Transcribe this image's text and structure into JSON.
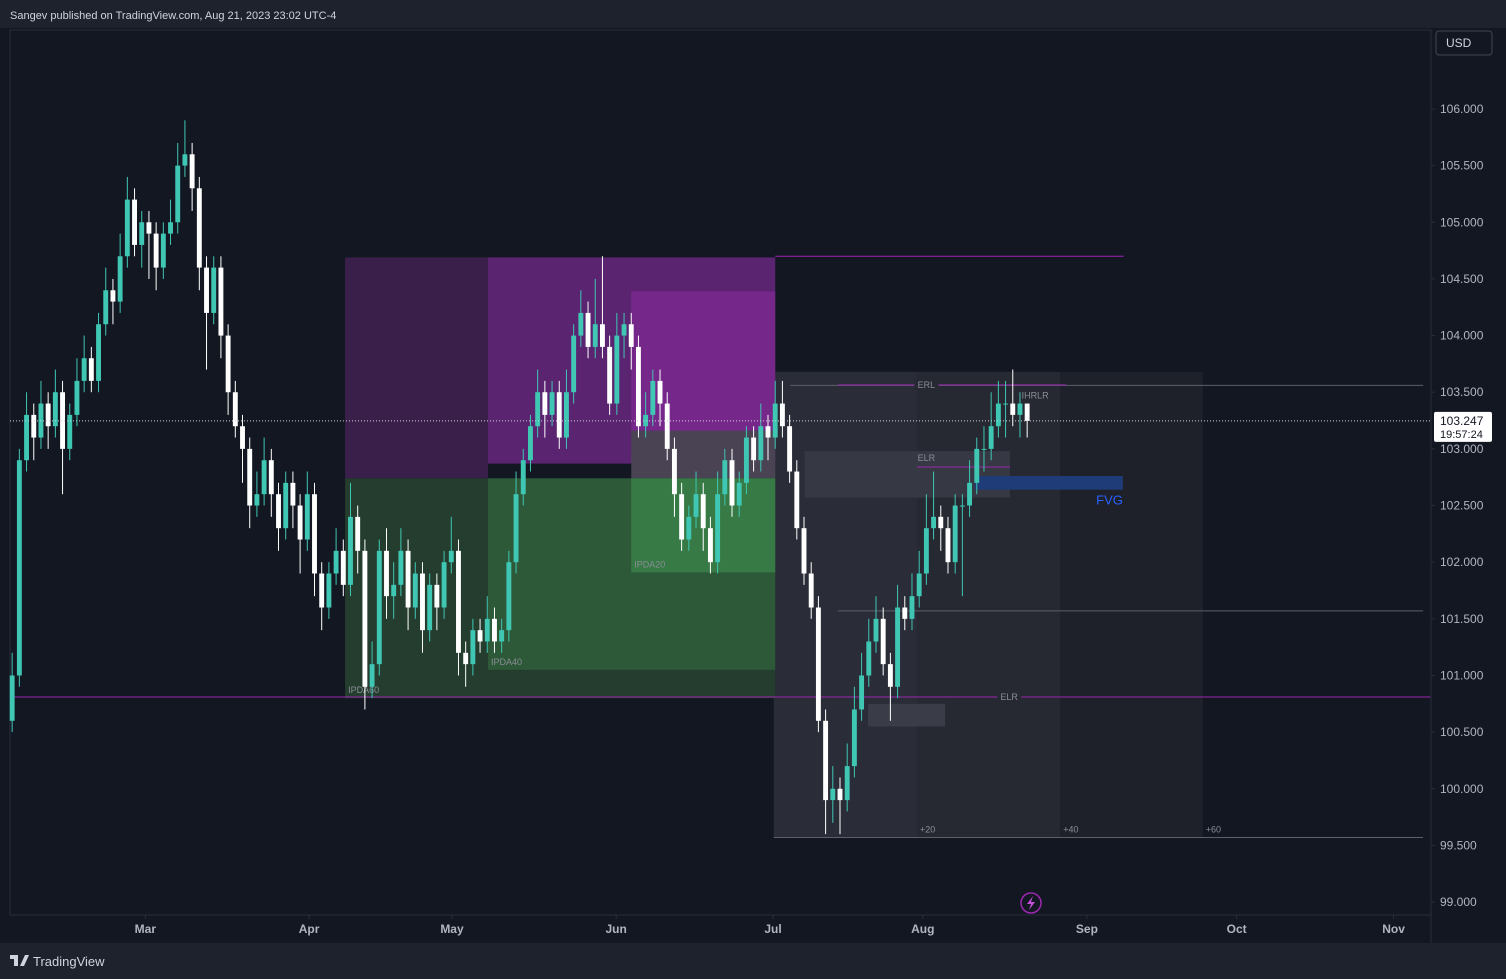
{
  "header": "Sangev published on TradingView.com, Aug 21, 2023 23:02 UTC-4",
  "footer": "TradingView",
  "chart_data": {
    "type": "candlestick",
    "currency": "USD",
    "up_color": "#3fc7b4",
    "down_color": "#ffffff",
    "xlim": [
      -0.3,
      197.1
    ],
    "ylim": [
      98.886,
      106.697
    ],
    "xticks": [
      {
        "value": 18.5,
        "label": "Mar"
      },
      {
        "value": 41.25,
        "label": "Apr"
      },
      {
        "value": 61.1,
        "label": "May"
      },
      {
        "value": 83.9,
        "label": "Jun"
      },
      {
        "value": 105.7,
        "label": "Jul"
      },
      {
        "value": 126.5,
        "label": "Aug"
      },
      {
        "value": 149.3,
        "label": "Sep"
      },
      {
        "value": 170.1,
        "label": "Oct"
      },
      {
        "value": 191.9,
        "label": "Nov"
      }
    ],
    "yticks": [
      {
        "value": 99,
        "label": "99.000"
      },
      {
        "value": 99.5,
        "label": "99.500"
      },
      {
        "value": 100,
        "label": "100.000"
      },
      {
        "value": 100.5,
        "label": "100.500"
      },
      {
        "value": 101,
        "label": "101.000"
      },
      {
        "value": 101.5,
        "label": "101.500"
      },
      {
        "value": 102,
        "label": "102.000"
      },
      {
        "value": 102.5,
        "label": "102.500"
      },
      {
        "value": 103,
        "label": "103.000"
      },
      {
        "value": 103.5,
        "label": "103.500"
      },
      {
        "value": 104,
        "label": "104.000"
      },
      {
        "value": 104.5,
        "label": "104.500"
      },
      {
        "value": 105,
        "label": "105.000"
      },
      {
        "value": 105.5,
        "label": "105.500"
      },
      {
        "value": 106,
        "label": "106.000"
      }
    ],
    "last_price": 103.247,
    "countdown": "19:57:24",
    "candles": [
      [
        100.6,
        101.2,
        100.5,
        101.0
      ],
      [
        101.0,
        103.0,
        100.9,
        102.9
      ],
      [
        102.9,
        103.5,
        102.8,
        103.3
      ],
      [
        103.3,
        103.4,
        102.9,
        103.1
      ],
      [
        103.1,
        103.6,
        103.0,
        103.4
      ],
      [
        103.4,
        103.5,
        103.0,
        103.2
      ],
      [
        103.2,
        103.7,
        103.1,
        103.5
      ],
      [
        103.5,
        103.6,
        102.6,
        103.0
      ],
      [
        103.0,
        103.4,
        102.9,
        103.3
      ],
      [
        103.3,
        103.8,
        103.2,
        103.6
      ],
      [
        103.6,
        104.0,
        103.5,
        103.8
      ],
      [
        103.8,
        103.9,
        103.5,
        103.6
      ],
      [
        103.6,
        104.2,
        103.5,
        104.1
      ],
      [
        104.1,
        104.6,
        104.0,
        104.4
      ],
      [
        104.4,
        104.5,
        104.1,
        104.3
      ],
      [
        104.3,
        104.9,
        104.2,
        104.7
      ],
      [
        104.7,
        105.4,
        104.6,
        105.2
      ],
      [
        105.2,
        105.3,
        104.7,
        104.8
      ],
      [
        104.8,
        105.1,
        104.6,
        105.0
      ],
      [
        105.0,
        105.1,
        104.5,
        104.9
      ],
      [
        104.9,
        105.0,
        104.4,
        104.6
      ],
      [
        104.6,
        105.0,
        104.5,
        104.9
      ],
      [
        104.9,
        105.2,
        104.8,
        105.0
      ],
      [
        105.0,
        105.7,
        104.9,
        105.5
      ],
      [
        105.5,
        105.9,
        105.4,
        105.6
      ],
      [
        105.6,
        105.7,
        105.1,
        105.3
      ],
      [
        105.3,
        105.4,
        104.4,
        104.6
      ],
      [
        104.6,
        104.7,
        103.7,
        104.2
      ],
      [
        104.2,
        104.7,
        104.1,
        104.6
      ],
      [
        104.6,
        104.7,
        103.8,
        104.0
      ],
      [
        104.0,
        104.1,
        103.3,
        103.5
      ],
      [
        103.5,
        103.6,
        103.1,
        103.2
      ],
      [
        103.2,
        103.3,
        102.7,
        103.0
      ],
      [
        103.0,
        103.1,
        102.3,
        102.5
      ],
      [
        102.5,
        102.8,
        102.4,
        102.6
      ],
      [
        102.6,
        103.1,
        102.5,
        102.9
      ],
      [
        102.9,
        103.0,
        102.4,
        102.6
      ],
      [
        102.6,
        102.7,
        102.1,
        102.3
      ],
      [
        102.3,
        102.8,
        102.2,
        102.7
      ],
      [
        102.7,
        102.8,
        102.3,
        102.5
      ],
      [
        102.5,
        102.6,
        101.9,
        102.2
      ],
      [
        102.2,
        102.8,
        102.1,
        102.6
      ],
      [
        102.6,
        102.7,
        101.7,
        101.9
      ],
      [
        101.9,
        102.0,
        101.4,
        101.6
      ],
      [
        101.6,
        102.0,
        101.5,
        101.9
      ],
      [
        101.9,
        102.3,
        101.8,
        102.1
      ],
      [
        102.1,
        102.2,
        101.7,
        101.8
      ],
      [
        101.8,
        102.7,
        101.7,
        102.4
      ],
      [
        102.4,
        102.5,
        101.9,
        102.1
      ],
      [
        102.1,
        102.2,
        100.7,
        100.9
      ],
      [
        100.9,
        101.3,
        100.8,
        101.1
      ],
      [
        101.1,
        102.2,
        101.0,
        102.1
      ],
      [
        102.1,
        102.3,
        101.5,
        101.7
      ],
      [
        101.7,
        102.0,
        101.5,
        101.8
      ],
      [
        101.8,
        102.3,
        101.7,
        102.1
      ],
      [
        102.1,
        102.2,
        101.4,
        101.6
      ],
      [
        101.6,
        102.0,
        101.5,
        101.9
      ],
      [
        101.9,
        102.0,
        101.2,
        101.4
      ],
      [
        101.4,
        101.9,
        101.3,
        101.8
      ],
      [
        101.8,
        101.9,
        101.4,
        101.6
      ],
      [
        101.6,
        102.1,
        101.5,
        102.0
      ],
      [
        102.0,
        102.4,
        101.9,
        102.1
      ],
      [
        102.1,
        102.2,
        101.0,
        101.2
      ],
      [
        101.2,
        101.3,
        100.9,
        101.1
      ],
      [
        101.1,
        101.5,
        101.0,
        101.4
      ],
      [
        101.4,
        101.5,
        101.2,
        101.3
      ],
      [
        101.3,
        101.7,
        101.2,
        101.5
      ],
      [
        101.5,
        101.6,
        101.2,
        101.3
      ],
      [
        101.3,
        101.5,
        101.2,
        101.4
      ],
      [
        101.4,
        102.1,
        101.3,
        102.0
      ],
      [
        102.0,
        102.8,
        101.9,
        102.6
      ],
      [
        102.6,
        103.0,
        102.5,
        102.9
      ],
      [
        102.9,
        103.3,
        102.8,
        103.2
      ],
      [
        103.2,
        103.7,
        103.1,
        103.5
      ],
      [
        103.5,
        103.6,
        103.1,
        103.3
      ],
      [
        103.3,
        103.6,
        103.2,
        103.5
      ],
      [
        103.5,
        103.6,
        103.0,
        103.1
      ],
      [
        103.1,
        103.7,
        103.0,
        103.5
      ],
      [
        103.5,
        104.1,
        103.4,
        104.0
      ],
      [
        104.0,
        104.4,
        103.9,
        104.2
      ],
      [
        104.2,
        104.3,
        103.8,
        103.9
      ],
      [
        103.9,
        104.5,
        103.8,
        104.1
      ],
      [
        104.1,
        104.7,
        103.8,
        103.9
      ],
      [
        103.9,
        104.0,
        103.3,
        103.4
      ],
      [
        103.4,
        104.2,
        103.3,
        104.0
      ],
      [
        104.0,
        104.2,
        103.8,
        104.1
      ],
      [
        104.1,
        104.2,
        103.7,
        103.9
      ],
      [
        103.9,
        104.0,
        103.1,
        103.2
      ],
      [
        103.2,
        103.5,
        103.1,
        103.3
      ],
      [
        103.3,
        103.7,
        103.2,
        103.6
      ],
      [
        103.6,
        103.7,
        103.2,
        103.4
      ],
      [
        103.4,
        103.5,
        102.9,
        103.0
      ],
      [
        103.0,
        103.1,
        102.4,
        102.6
      ],
      [
        102.6,
        102.7,
        102.1,
        102.2
      ],
      [
        102.2,
        102.5,
        102.1,
        102.4
      ],
      [
        102.4,
        102.8,
        102.3,
        102.6
      ],
      [
        102.6,
        102.7,
        102.1,
        102.3
      ],
      [
        102.3,
        102.4,
        101.9,
        102.0
      ],
      [
        102.0,
        102.8,
        101.9,
        102.6
      ],
      [
        102.6,
        103.0,
        102.5,
        102.9
      ],
      [
        102.9,
        103.0,
        102.4,
        102.5
      ],
      [
        102.5,
        102.8,
        102.4,
        102.7
      ],
      [
        102.7,
        103.2,
        102.6,
        103.1
      ],
      [
        103.1,
        103.2,
        102.8,
        102.9
      ],
      [
        102.9,
        103.4,
        102.8,
        103.2
      ],
      [
        103.2,
        103.3,
        102.9,
        103.1
      ],
      [
        103.1,
        103.6,
        103.0,
        103.4
      ],
      [
        103.4,
        103.6,
        103.1,
        103.2
      ],
      [
        103.2,
        103.3,
        102.7,
        102.8
      ],
      [
        102.8,
        102.9,
        102.2,
        102.3
      ],
      [
        102.3,
        102.4,
        101.8,
        101.9
      ],
      [
        101.9,
        102.0,
        101.5,
        101.6
      ],
      [
        101.6,
        101.7,
        100.5,
        100.6
      ],
      [
        100.6,
        100.7,
        99.6,
        99.9
      ],
      [
        99.9,
        100.2,
        99.7,
        100.0
      ],
      [
        100.0,
        100.1,
        99.6,
        99.9
      ],
      [
        99.9,
        100.4,
        99.8,
        100.2
      ],
      [
        100.2,
        100.9,
        100.1,
        100.7
      ],
      [
        100.7,
        101.2,
        100.6,
        101.0
      ],
      [
        101.0,
        101.5,
        100.9,
        101.3
      ],
      [
        101.3,
        101.7,
        101.2,
        101.5
      ],
      [
        101.5,
        101.6,
        101.0,
        101.1
      ],
      [
        101.1,
        101.2,
        100.6,
        100.9
      ],
      [
        100.9,
        101.8,
        100.8,
        101.6
      ],
      [
        101.6,
        101.7,
        101.4,
        101.5
      ],
      [
        101.5,
        101.9,
        101.4,
        101.7
      ],
      [
        101.7,
        102.1,
        101.6,
        101.9
      ],
      [
        101.9,
        102.6,
        101.8,
        102.3
      ],
      [
        102.3,
        102.8,
        102.2,
        102.4
      ],
      [
        102.4,
        102.5,
        102.1,
        102.3
      ],
      [
        102.3,
        102.4,
        101.9,
        102.0
      ],
      [
        102.0,
        102.6,
        101.9,
        102.5
      ],
      [
        102.5,
        102.6,
        101.7,
        102.5
      ],
      [
        102.5,
        102.9,
        102.4,
        102.7
      ],
      [
        102.7,
        103.1,
        102.6,
        103.0
      ],
      [
        103.0,
        103.2,
        102.8,
        103.0
      ],
      [
        103.0,
        103.5,
        102.9,
        103.2
      ],
      [
        103.2,
        103.6,
        103.1,
        103.4
      ],
      [
        103.4,
        103.6,
        103.1,
        103.4
      ],
      [
        103.4,
        103.7,
        103.2,
        103.3
      ],
      [
        103.3,
        103.5,
        103.1,
        103.4
      ],
      [
        103.4,
        103.4,
        103.1,
        103.247
      ]
    ],
    "zones": [
      {
        "x": [
          105.8,
          125.7
        ],
        "y": [
          99.57,
          103.68
        ],
        "color": "#2a2d37"
      },
      {
        "x": [
          125.7,
          145.6
        ],
        "y": [
          99.57,
          103.68
        ],
        "color": "#262932",
        "label": "+20",
        "label_corner": "bottom-left"
      },
      {
        "x": [
          145.6,
          165.4
        ],
        "y": [
          99.57,
          103.68
        ],
        "color": "#1e212a",
        "label": "+40",
        "label_corner": "bottom-left"
      },
      {
        "x": [
          165.4,
          165.4
        ],
        "y": [
          99.57,
          99.57
        ],
        "color": "#1e212a",
        "label": "+60",
        "label_corner": "bottom-left"
      },
      {
        "x": [
          46.25,
          66.1
        ],
        "y": [
          102.74,
          104.69
        ],
        "color": "#3a1f4b"
      },
      {
        "x": [
          66.1,
          106.0
        ],
        "y": [
          102.87,
          104.69
        ],
        "color": "#5a2470"
      },
      {
        "x": [
          86.0,
          106.0
        ],
        "y": [
          103.16,
          104.39
        ],
        "color": "#76278a"
      },
      {
        "x": [
          86.0,
          106.0
        ],
        "y": [
          102.74,
          103.16
        ],
        "color": "#4a4353"
      },
      {
        "x": [
          46.25,
          106.0
        ],
        "y": [
          100.8,
          102.74
        ],
        "color": "#243d2e",
        "label": "IPDA60",
        "label_corner": "bottom-left"
      },
      {
        "x": [
          66.1,
          106.0
        ],
        "y": [
          101.05,
          102.74
        ],
        "color": "#2d5939",
        "label": "IPDA40",
        "label_corner": "bottom-left"
      },
      {
        "x": [
          86.0,
          106.0
        ],
        "y": [
          101.91,
          102.74
        ],
        "color": "#377a45",
        "label": "IPDA20",
        "label_corner": "bottom-left"
      },
      {
        "x": [
          110.1,
          138.6
        ],
        "y": [
          102.57,
          102.98
        ],
        "color": "#363944"
      },
      {
        "x": [
          118.9,
          129.6
        ],
        "y": [
          100.55,
          100.75
        ],
        "color": "#3a3d47"
      },
      {
        "x": [
          133.75,
          154.3
        ],
        "y": [
          102.64,
          102.76
        ],
        "color": "#1f3c78",
        "label": "FVG",
        "label_corner": "below-right",
        "label_color": "#2962ff"
      }
    ],
    "lines": [
      {
        "x": [
          108.1,
          196.0
        ],
        "y": 103.56,
        "color": "#5d606b",
        "label": "IHRLR",
        "label_x": 142.1,
        "label_side": "below"
      },
      {
        "x": [
          114.7,
          146.4
        ],
        "y": 103.565,
        "color": "#9c27b0",
        "label": "ERL",
        "label_x": 127.0,
        "label_side": "on"
      },
      {
        "x": [
          125.7,
          138.6
        ],
        "y": 102.84,
        "color": "#9c27b0",
        "label": "ELR",
        "label_x": 127.0,
        "label_side": "above"
      },
      {
        "x": [
          106.0,
          154.4
        ],
        "y": 104.7,
        "color": "#9c27b0"
      },
      {
        "x": [
          -0.3,
          197.1
        ],
        "y": 100.81,
        "color": "#9c27b0",
        "label": "ELR",
        "label_x": 138.5,
        "label_side": "on"
      },
      {
        "x": [
          114.7,
          196.0
        ],
        "y": 101.57,
        "color": "#5d606b"
      },
      {
        "x": [
          105.8,
          196.0
        ],
        "y": 99.57,
        "color": "#5d606b"
      }
    ]
  }
}
